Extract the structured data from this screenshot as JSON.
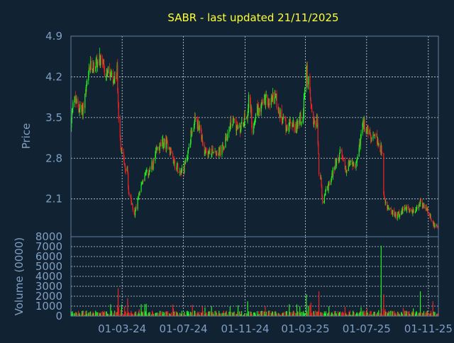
{
  "colors": {
    "background": "#112233",
    "axis": "#5e7ea0",
    "grid": "#d0d8e0",
    "title": "#ffff33",
    "label": "#7f9fc3",
    "up": "#22ee22",
    "down": "#ee2222"
  },
  "chart_data": {
    "type": "candlestick-with-volume",
    "title": "SABR - last updated 21/11/2025",
    "price_panel": {
      "ylabel": "Price",
      "ylim": [
        1.45,
        4.9
      ],
      "yticks": [
        2.1,
        2.8,
        3.5,
        4.2,
        4.9
      ],
      "ytick_labels": [
        "2.1",
        "2.8",
        "3.5",
        "4.2",
        "4.9"
      ],
      "grid": true
    },
    "volume_panel": {
      "ylabel": "Volume (0000)",
      "ylim": [
        0,
        8000
      ],
      "yticks": [
        0,
        1000,
        2000,
        3000,
        4000,
        5000,
        6000,
        7000,
        8000
      ],
      "ytick_labels": [
        "0",
        "1000",
        "2000",
        "3000",
        "4000",
        "5000",
        "6000",
        "7000",
        "8000"
      ],
      "grid": true
    },
    "x_axis": {
      "start": "2023-11-20",
      "end": "2025-11-21",
      "ticks": [
        "2024-03-01",
        "2024-07-01",
        "2024-11-01",
        "2025-03-01",
        "2025-07-01",
        "2025-11-01"
      ],
      "tick_labels": [
        "01-03-24",
        "01-07-24",
        "01-11-24",
        "01-03-25",
        "01-07-25",
        "01-11-25"
      ]
    },
    "close_path": [
      [
        "2023-11-20",
        3.3
      ],
      [
        "2023-11-24",
        3.85
      ],
      [
        "2023-12-04",
        3.7
      ],
      [
        "2023-12-12",
        3.6
      ],
      [
        "2023-12-20",
        3.95
      ],
      [
        "2023-12-28",
        4.35
      ],
      [
        "2024-01-05",
        4.4
      ],
      [
        "2024-01-15",
        4.5
      ],
      [
        "2024-01-25",
        4.3
      ],
      [
        "2024-02-05",
        4.25
      ],
      [
        "2024-02-14",
        4.05
      ],
      [
        "2024-02-20",
        4.3
      ],
      [
        "2024-02-23",
        3.5
      ],
      [
        "2024-02-28",
        2.95
      ],
      [
        "2024-03-06",
        2.7
      ],
      [
        "2024-03-12",
        2.55
      ],
      [
        "2024-03-14",
        2.2
      ],
      [
        "2024-03-20",
        2.0
      ],
      [
        "2024-03-26",
        1.85
      ],
      [
        "2024-04-03",
        2.2
      ],
      [
        "2024-04-12",
        2.45
      ],
      [
        "2024-04-22",
        2.55
      ],
      [
        "2024-05-02",
        2.7
      ],
      [
        "2024-05-10",
        2.95
      ],
      [
        "2024-05-20",
        3.05
      ],
      [
        "2024-05-30",
        3.05
      ],
      [
        "2024-06-06",
        2.9
      ],
      [
        "2024-06-14",
        2.7
      ],
      [
        "2024-06-24",
        2.6
      ],
      [
        "2024-07-02",
        2.62
      ],
      [
        "2024-07-10",
        2.9
      ],
      [
        "2024-07-18",
        3.3
      ],
      [
        "2024-07-26",
        3.45
      ],
      [
        "2024-08-05",
        3.2
      ],
      [
        "2024-08-12",
        2.85
      ],
      [
        "2024-08-20",
        2.9
      ],
      [
        "2024-08-30",
        2.95
      ],
      [
        "2024-09-10",
        2.9
      ],
      [
        "2024-09-20",
        3.0
      ],
      [
        "2024-10-01",
        3.35
      ],
      [
        "2024-10-10",
        3.45
      ],
      [
        "2024-10-20",
        3.25
      ],
      [
        "2024-10-28",
        3.45
      ],
      [
        "2024-11-05",
        3.55
      ],
      [
        "2024-11-10",
        3.95
      ],
      [
        "2024-11-15",
        3.3
      ],
      [
        "2024-11-22",
        3.6
      ],
      [
        "2024-12-02",
        3.7
      ],
      [
        "2024-12-12",
        3.8
      ],
      [
        "2024-12-20",
        3.75
      ],
      [
        "2024-12-30",
        3.9
      ],
      [
        "2025-01-08",
        3.6
      ],
      [
        "2025-01-15",
        3.45
      ],
      [
        "2025-01-22",
        3.35
      ],
      [
        "2025-02-01",
        3.4
      ],
      [
        "2025-02-10",
        3.3
      ],
      [
        "2025-02-18",
        3.5
      ],
      [
        "2025-02-24",
        3.4
      ],
      [
        "2025-03-02",
        4.4
      ],
      [
        "2025-03-08",
        4.05
      ],
      [
        "2025-03-14",
        3.55
      ],
      [
        "2025-03-20",
        3.4
      ],
      [
        "2025-03-24",
        3.55
      ],
      [
        "2025-03-28",
        2.6
      ],
      [
        "2025-04-01",
        2.4
      ],
      [
        "2025-04-04",
        2.0
      ],
      [
        "2025-04-10",
        2.2
      ],
      [
        "2025-04-20",
        2.4
      ],
      [
        "2025-05-01",
        2.75
      ],
      [
        "2025-05-10",
        2.9
      ],
      [
        "2025-05-20",
        2.6
      ],
      [
        "2025-05-30",
        2.75
      ],
      [
        "2025-06-08",
        2.6
      ],
      [
        "2025-06-18",
        3.1
      ],
      [
        "2025-06-25",
        3.4
      ],
      [
        "2025-07-04",
        3.25
      ],
      [
        "2025-07-12",
        3.1
      ],
      [
        "2025-07-20",
        3.15
      ],
      [
        "2025-07-27",
        3.0
      ],
      [
        "2025-08-01",
        2.95
      ],
      [
        "2025-08-04",
        2.15
      ],
      [
        "2025-08-10",
        1.95
      ],
      [
        "2025-08-18",
        1.9
      ],
      [
        "2025-08-28",
        1.8
      ],
      [
        "2025-09-08",
        1.85
      ],
      [
        "2025-09-15",
        1.95
      ],
      [
        "2025-09-25",
        1.9
      ],
      [
        "2025-10-05",
        1.88
      ],
      [
        "2025-10-12",
        1.95
      ],
      [
        "2025-10-16",
        2.1
      ],
      [
        "2025-10-22",
        1.95
      ],
      [
        "2025-10-30",
        1.9
      ],
      [
        "2025-11-06",
        1.75
      ],
      [
        "2025-11-14",
        1.65
      ],
      [
        "2025-11-21",
        1.58
      ]
    ],
    "volume_spikes": [
      [
        "2024-02-22",
        2800
      ],
      [
        "2024-03-12",
        1800
      ],
      [
        "2024-04-15",
        1200
      ],
      [
        "2024-11-06",
        1500
      ],
      [
        "2025-03-03",
        2200
      ],
      [
        "2025-03-28",
        2500
      ],
      [
        "2025-07-30",
        7100
      ],
      [
        "2025-08-04",
        2200
      ],
      [
        "2025-10-16",
        2500
      ],
      [
        "2025-11-10",
        1500
      ]
    ]
  }
}
